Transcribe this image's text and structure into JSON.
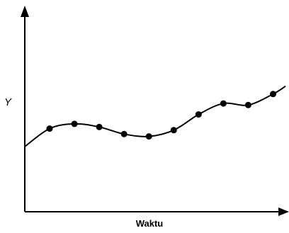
{
  "chart_data": {
    "type": "line",
    "title": "",
    "xlabel": "Waktu",
    "ylabel": "Y",
    "grid": false,
    "legend": "none",
    "x": [
      1,
      2,
      3,
      4,
      5,
      6,
      7,
      8,
      9,
      10
    ],
    "series": [
      {
        "values": [
          5.3,
          5.6,
          5.4,
          4.95,
          4.8,
          5.2,
          6.2,
          6.9,
          6.8,
          7.5
        ]
      }
    ],
    "curve_start": [
      0.0,
      4.15
    ],
    "curve_end": [
      10.5,
      8.0
    ],
    "xlim": [
      0,
      10.5
    ],
    "ylim": [
      0,
      12.5
    ],
    "colors": {
      "axis": "#000000",
      "line": "#000000",
      "markers": "#000000"
    }
  }
}
